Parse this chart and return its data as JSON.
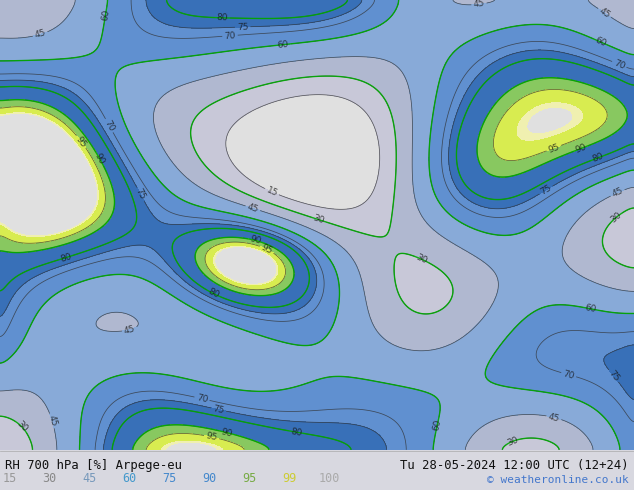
{
  "title_left": "RH 700 hPa [%] Arpege-eu",
  "title_right": "Tu 28-05-2024 12:00 UTC (12+24)",
  "copyright": "© weatheronline.co.uk",
  "colorbar_values": [
    15,
    30,
    45,
    60,
    75,
    90,
    95,
    99,
    100
  ],
  "label_colors": [
    "#999999",
    "#888888",
    "#7799bb",
    "#4499cc",
    "#4488cc",
    "#4488cc",
    "#77aa44",
    "#cccc33",
    "#aaaaaa"
  ],
  "map_colors": [
    "#e0e0e0",
    "#c8c8d8",
    "#b0b8d0",
    "#88aad8",
    "#6090d0",
    "#3870b8",
    "#88c860",
    "#d8ec50",
    "#f0f0b0",
    "#ffffff"
  ],
  "map_boundaries": [
    0,
    15,
    30,
    45,
    60,
    75,
    90,
    95,
    99,
    100,
    110
  ],
  "figsize": [
    6.34,
    4.9
  ],
  "dpi": 100,
  "bottom_bar_height": 0.082,
  "bottom_bg": "#f0f0f0",
  "fig_bg": "#d8d8e0"
}
